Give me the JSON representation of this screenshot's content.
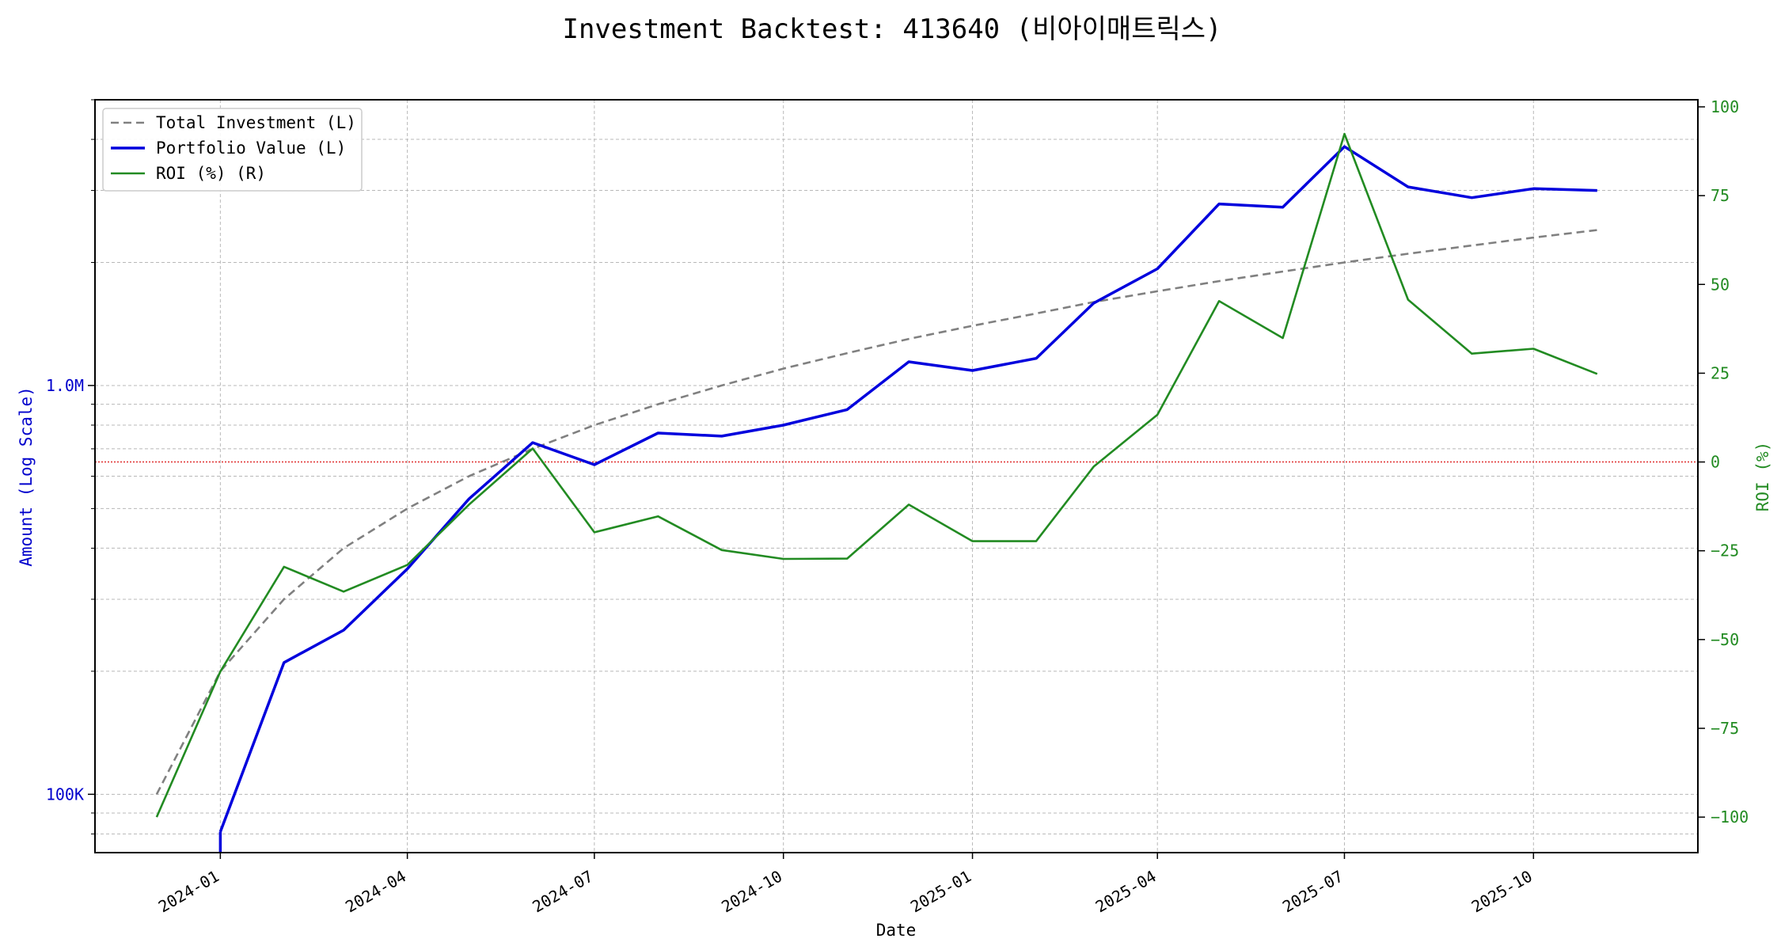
{
  "chart_data": {
    "type": "line",
    "title": "Investment Backtest: 413640 (비아이매트릭스)",
    "xlabel": "Date",
    "ylabel_left": "Amount (Log Scale)",
    "ylabel_right": "ROI (%)",
    "x_dates": [
      "2023-12-01",
      "2024-01-01",
      "2024-02-01",
      "2024-03-01",
      "2024-04-01",
      "2024-05-01",
      "2024-06-01",
      "2024-07-01",
      "2024-08-01",
      "2024-09-01",
      "2024-10-01",
      "2024-11-01",
      "2024-12-01",
      "2025-01-01",
      "2025-02-01",
      "2025-03-01",
      "2025-04-01",
      "2025-05-01",
      "2025-06-01",
      "2025-07-01",
      "2025-08-01",
      "2025-09-01",
      "2025-10-01",
      "2025-11-01"
    ],
    "x_ticks": [
      "2024-01",
      "2024-04",
      "2024-07",
      "2024-10",
      "2025-01",
      "2025-04",
      "2025-07",
      "2025-10"
    ],
    "left_scale": "log",
    "left_ylim": [
      72000,
      5000000
    ],
    "left_ticks": [
      {
        "value": 100000,
        "label": "100K"
      },
      {
        "value": 1000000,
        "label": "1.0M"
      }
    ],
    "right_ylim": [
      -110,
      102
    ],
    "right_ticks": [
      {
        "value": 100,
        "label": "100"
      },
      {
        "value": 75,
        "label": "75"
      },
      {
        "value": 50,
        "label": "50"
      },
      {
        "value": 25,
        "label": "25"
      },
      {
        "value": 0,
        "label": "0"
      },
      {
        "value": -25,
        "label": "−25"
      },
      {
        "value": -50,
        "label": "−50"
      },
      {
        "value": -75,
        "label": "−75"
      },
      {
        "value": -100,
        "label": "−100"
      }
    ],
    "zero_line": 0,
    "grid": true,
    "legend_position": "top-left",
    "series": [
      {
        "name": "Total Investment (L)",
        "axis": "left",
        "style": "dashed",
        "color": "#808080",
        "values": [
          100000,
          200000,
          300000,
          400000,
          500000,
          600000,
          700000,
          800000,
          900000,
          1000000,
          1100000,
          1200000,
          1300000,
          1400000,
          1500000,
          1600000,
          1700000,
          1800000,
          1900000,
          2000000,
          2100000,
          2200000,
          2300000,
          2400000
        ]
      },
      {
        "name": "Portfolio Value (L)",
        "axis": "left",
        "style": "solid",
        "color": "#0000dd",
        "values": [
          null,
          81000,
          210000,
          252000,
          356000,
          528000,
          725000,
          640000,
          765000,
          752000,
          800000,
          873000,
          1143000,
          1088000,
          1165000,
          1590000,
          1930000,
          2780000,
          2730000,
          3840000,
          3060000,
          2880000,
          3030000,
          3000000
        ]
      },
      {
        "name": "ROI (%) (R)",
        "axis": "right",
        "style": "solid",
        "color": "#228b22",
        "values": [
          -100,
          -59,
          -29.5,
          -36.5,
          -29,
          -12,
          3.8,
          -19.8,
          -15.3,
          -24.8,
          -27.3,
          -27.2,
          -12,
          -22.3,
          -22.3,
          -1.3,
          13.3,
          45.3,
          34.9,
          92.4,
          45.7,
          30.5,
          31.9,
          24.8
        ]
      }
    ]
  }
}
